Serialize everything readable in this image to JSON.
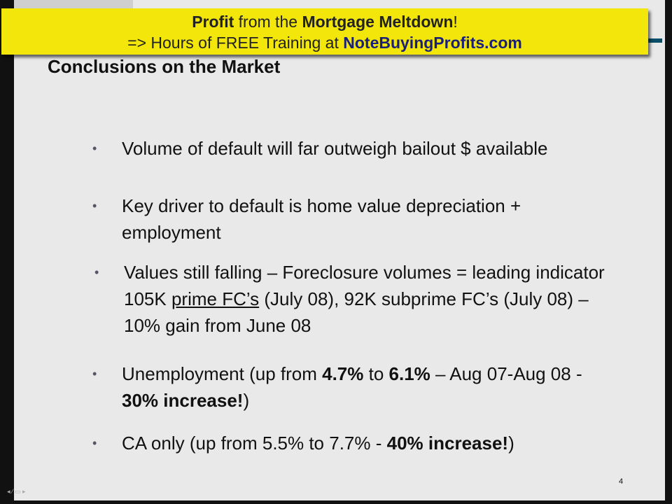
{
  "banner": {
    "line1": {
      "bold1": "Profit",
      "mid": " from the ",
      "bold2": "Mortgage Meltdown",
      "end": "!"
    },
    "line2": {
      "text": "=> Hours of FREE Training at ",
      "url": "NoteBuyingProfits.com"
    }
  },
  "slide": {
    "title": "Conclusions on the Market",
    "bullets": [
      {
        "text": "Volume of default will far outweigh bailout $ available"
      },
      {
        "text": "Key driver to default is home value depreciation + employment"
      },
      {
        "pre": "Values still falling – Foreclosure volumes = leading indicator 105K ",
        "under": "prime FC’s",
        "post": " (July 08), 92K subprime FC’s (July 08) – 10% gain from June 08"
      },
      {
        "a": "Unemployment (up from ",
        "b": "4.7%",
        "c": " to ",
        "d": "6.1%",
        "e": " – Aug 07-Aug 08 - ",
        "f": "30% increase!",
        "g": ")"
      },
      {
        "a": "CA only (up from 5.5% to 7.7% - ",
        "b": "40% increase!",
        "c": ")"
      }
    ],
    "page_number": "4"
  },
  "colors": {
    "banner": "#f2e60a",
    "url": "#1a1f7a",
    "slide_bg": "#e9e9e9"
  }
}
